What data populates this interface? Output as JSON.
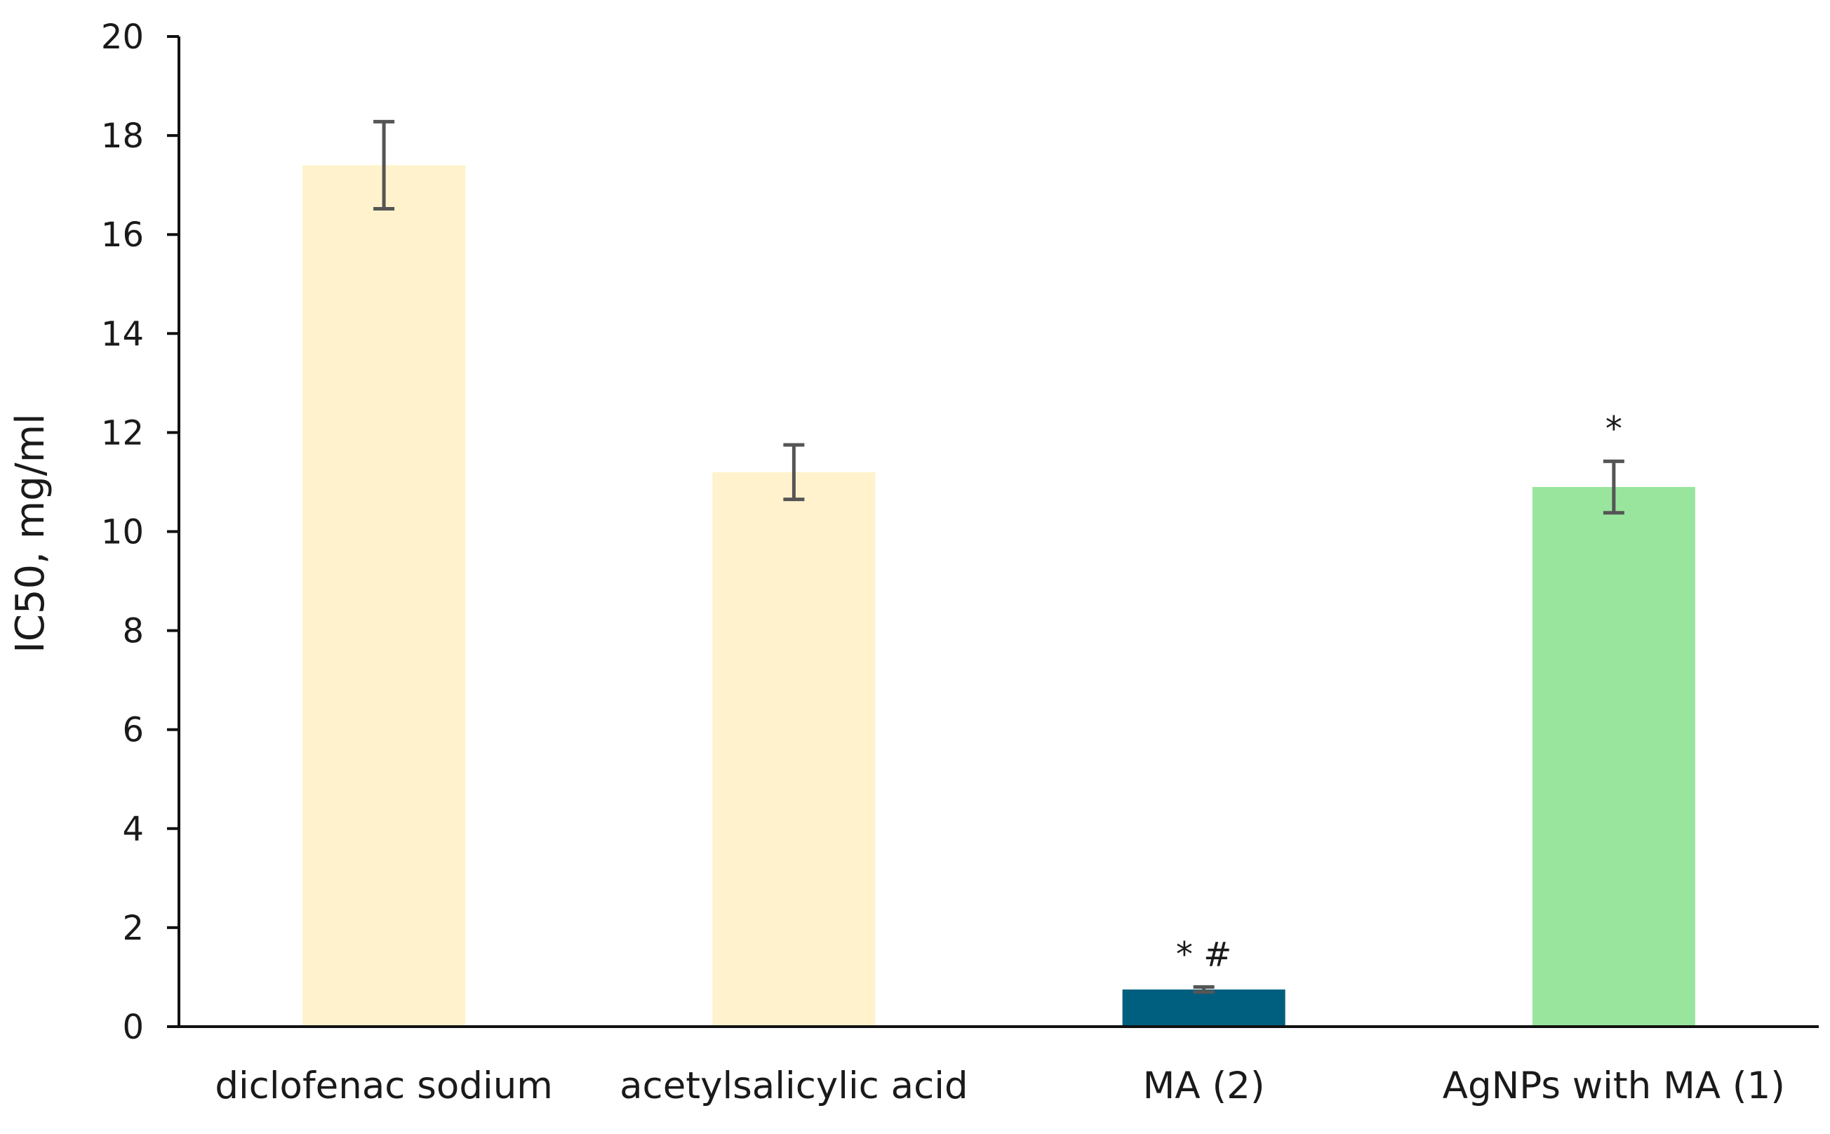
{
  "chart_data": {
    "type": "bar",
    "title": "",
    "xlabel": "",
    "ylabel": "IC50, mg/ml",
    "ylim": [
      0,
      20
    ],
    "yticks": [
      0,
      2,
      4,
      6,
      8,
      10,
      12,
      14,
      16,
      18,
      20
    ],
    "grid": false,
    "legend": "none",
    "categories": [
      "diclofenac sodium",
      "acetylsalicylic acid",
      "MA (2)",
      "AgNPs with MA (1)"
    ],
    "values": [
      17.4,
      11.2,
      0.75,
      10.9
    ],
    "errors": [
      0.88,
      0.55,
      0.05,
      0.52
    ],
    "annotations": [
      "",
      "",
      "*  #",
      "*"
    ],
    "colors": [
      "#fff2cc",
      "#fff2cc",
      "#005f7e",
      "#99e59e"
    ],
    "error_color": "#555555",
    "axis_color": "#111111"
  }
}
